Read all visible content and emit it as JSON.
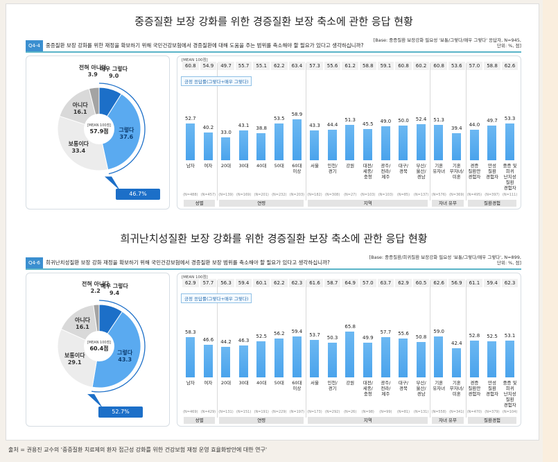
{
  "categories": [
    "남자",
    "여자",
    "20대",
    "30대",
    "40대",
    "50대",
    "60대\n이상",
    "서울",
    "인천/\n경기",
    "강원",
    "대전/\n세종/\n충청",
    "광주/\n전라/\n제주",
    "대구/\n경북",
    "부산/\n울산/\n경남",
    "기혼\n유자녀",
    "기혼\n무자녀/\n미혼",
    "경증\n질환만\n경험자",
    "만성\n질환\n경험자",
    "중증 및\n희귀\n난치성\n질환\n경험자"
  ],
  "groups": [
    {
      "label": "성별",
      "count": 2
    },
    {
      "label": "연령",
      "count": 5
    },
    {
      "label": "지역",
      "count": 7
    },
    {
      "label": "자녀 유무",
      "count": 2
    },
    {
      "label": "질환경험",
      "count": 3
    }
  ],
  "mean_label": "[MEAN 100점]",
  "callout": "긍정 응답률(그렇다+매우 그렇다)",
  "colors": {
    "very_yes": "#1c6fc8",
    "yes": "#5aaaf0",
    "neutral": "#ececec",
    "no": "#d9d9d9",
    "not_at_all": "#a3a3a3",
    "accent": "#3b8fd0"
  },
  "panels": [
    {
      "title": "중증질환 보장 강화를 위한 경증질환 보장 축소에 관한 응답 현황",
      "q_id": "Q4-4",
      "question": "중증질환 보장 강화를 위한 재정을 확보하기 위해 국민건강보험에서 경증질환에 대해 도움을 주는 범위를 축소해야 할 필요가 있다고 생각하십니까?",
      "base": "[Base: 중증질환 보장강화 필요성 '보통/그렇다/매우 그렇다' 응답자, N=945, 단위: %, 점]",
      "pie": {
        "mean_label": "[MEAN 100점]",
        "mean": "57.9점",
        "positive": "46.7%",
        "slices": [
          {
            "label": "매우 그렇다",
            "value": "9.0"
          },
          {
            "label": "그렇다",
            "value": "37.6"
          },
          {
            "label": "보통이다",
            "value": "33.4"
          },
          {
            "label": "아니다",
            "value": "16.1"
          },
          {
            "label": "전혀 아니다",
            "value": "3.9"
          }
        ]
      },
      "chart_data": {
        "type": "bar",
        "ylim": [
          0,
          100
        ],
        "means": [
          "60.8",
          "54.9",
          "49.7",
          "55.7",
          "55.1",
          "62.2",
          "63.4",
          "57.3",
          "55.6",
          "61.2",
          "58.8",
          "59.1",
          "60.8",
          "60.2",
          "60.8",
          "53.6",
          "57.0",
          "58.8",
          "62.6"
        ],
        "values": [
          "52.7",
          "40.2",
          "33.0",
          "43.1",
          "38.8",
          "53.5",
          "58.9",
          "43.3",
          "44.4",
          "51.3",
          "45.5",
          "49.0",
          "50.0",
          "52.4",
          "51.3",
          "39.4",
          "44.0",
          "49.7",
          "53.3"
        ],
        "n": [
          "(N=488)",
          "(N=457)",
          "(N=139)",
          "(N=169)",
          "(N=201)",
          "(N=232)",
          "(N=203)",
          "(N=182)",
          "(N=308)",
          "(N=27)",
          "(N=103)",
          "(N=103)",
          "(N=85)",
          "(N=137)",
          "(N=576)",
          "(N=369)",
          "(N=495)",
          "(N=397)",
          "(N=111)"
        ]
      }
    },
    {
      "title": "희귀난치성질환 보장 강화를 위한 경증질환 보장 축소에 관한 응답 현황",
      "q_id": "Q4-6",
      "question": "희귀난치성질환 보장 강화 재정을 확보하기 위해 국민건강보험에서 경증질환 보장 범위를 축소해야 할 필요가 있다고 생각하십니까?",
      "base": "[Base: 중증질환/희귀질환 보장강화 필요성 '보통/그렇다/매우 그렇다', N=899, 단위: %, 점]",
      "pie": {
        "mean_label": "[MEAN 100점]",
        "mean": "60.4점",
        "positive": "52.7%",
        "slices": [
          {
            "label": "매우 그렇다",
            "value": "9.4"
          },
          {
            "label": "그렇다",
            "value": "43.3"
          },
          {
            "label": "보통이다",
            "value": "29.1"
          },
          {
            "label": "아니다",
            "value": "16.1"
          },
          {
            "label": "전혀 아니다",
            "value": "2.2"
          }
        ]
      },
      "chart_data": {
        "type": "bar",
        "ylim": [
          0,
          100
        ],
        "means": [
          "62.9",
          "57.7",
          "56.3",
          "59.4",
          "60.1",
          "62.2",
          "62.3",
          "61.6",
          "58.7",
          "64.9",
          "57.0",
          "63.7",
          "62.9",
          "60.5",
          "62.6",
          "56.9",
          "61.1",
          "59.4",
          "62.3"
        ],
        "values": [
          "58.3",
          "46.6",
          "44.2",
          "46.3",
          "52.5",
          "56.2",
          "59.4",
          "53.7",
          "50.3",
          "65.8",
          "49.9",
          "57.7",
          "55.6",
          "50.8",
          "59.0",
          "42.4",
          "52.8",
          "52.5",
          "53.1"
        ],
        "n": [
          "(N=469)",
          "(N=429)",
          "(N=131)",
          "(N=151)",
          "(N=191)",
          "(N=229)",
          "(N=197)",
          "(N=173)",
          "(N=292)",
          "(N=26)",
          "(N=98)",
          "(N=99)",
          "(N=81)",
          "(N=131)",
          "(N=558)",
          "(N=341)",
          "(N=470)",
          "(N=379)",
          "(N=104)"
        ]
      }
    }
  ],
  "source": "출처 = 권용진 교수의 '중증질환 치료제의 환자 접근성 강화를 위한 건강보험 재정 운영 효율화방안에 대한 연구'"
}
